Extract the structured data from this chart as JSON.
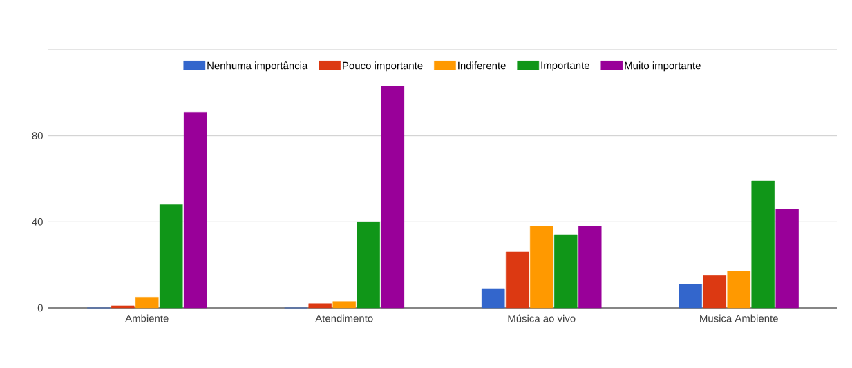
{
  "chart_data": {
    "type": "bar",
    "categories": [
      "Ambiente",
      "Atendimento",
      "Música ao vivo",
      "Musica Ambiente"
    ],
    "series": [
      {
        "name": "Nenhuma importância",
        "color": "#3366cc",
        "values": [
          0,
          0,
          9,
          11
        ]
      },
      {
        "name": "Pouco importante",
        "color": "#dc3912",
        "values": [
          1,
          2,
          26,
          15
        ]
      },
      {
        "name": "Indiferente",
        "color": "#ff9900",
        "values": [
          5,
          3,
          38,
          17
        ]
      },
      {
        "name": "Importante",
        "color": "#109618",
        "values": [
          48,
          40,
          34,
          59
        ]
      },
      {
        "name": "Muito importante",
        "color": "#990099",
        "values": [
          91,
          103,
          38,
          46
        ]
      }
    ],
    "ylim": [
      0,
      120
    ],
    "yticks": [
      0,
      40,
      80,
      {
        "value": 120,
        "label": null
      }
    ],
    "grid": "y",
    "legend": "top"
  }
}
